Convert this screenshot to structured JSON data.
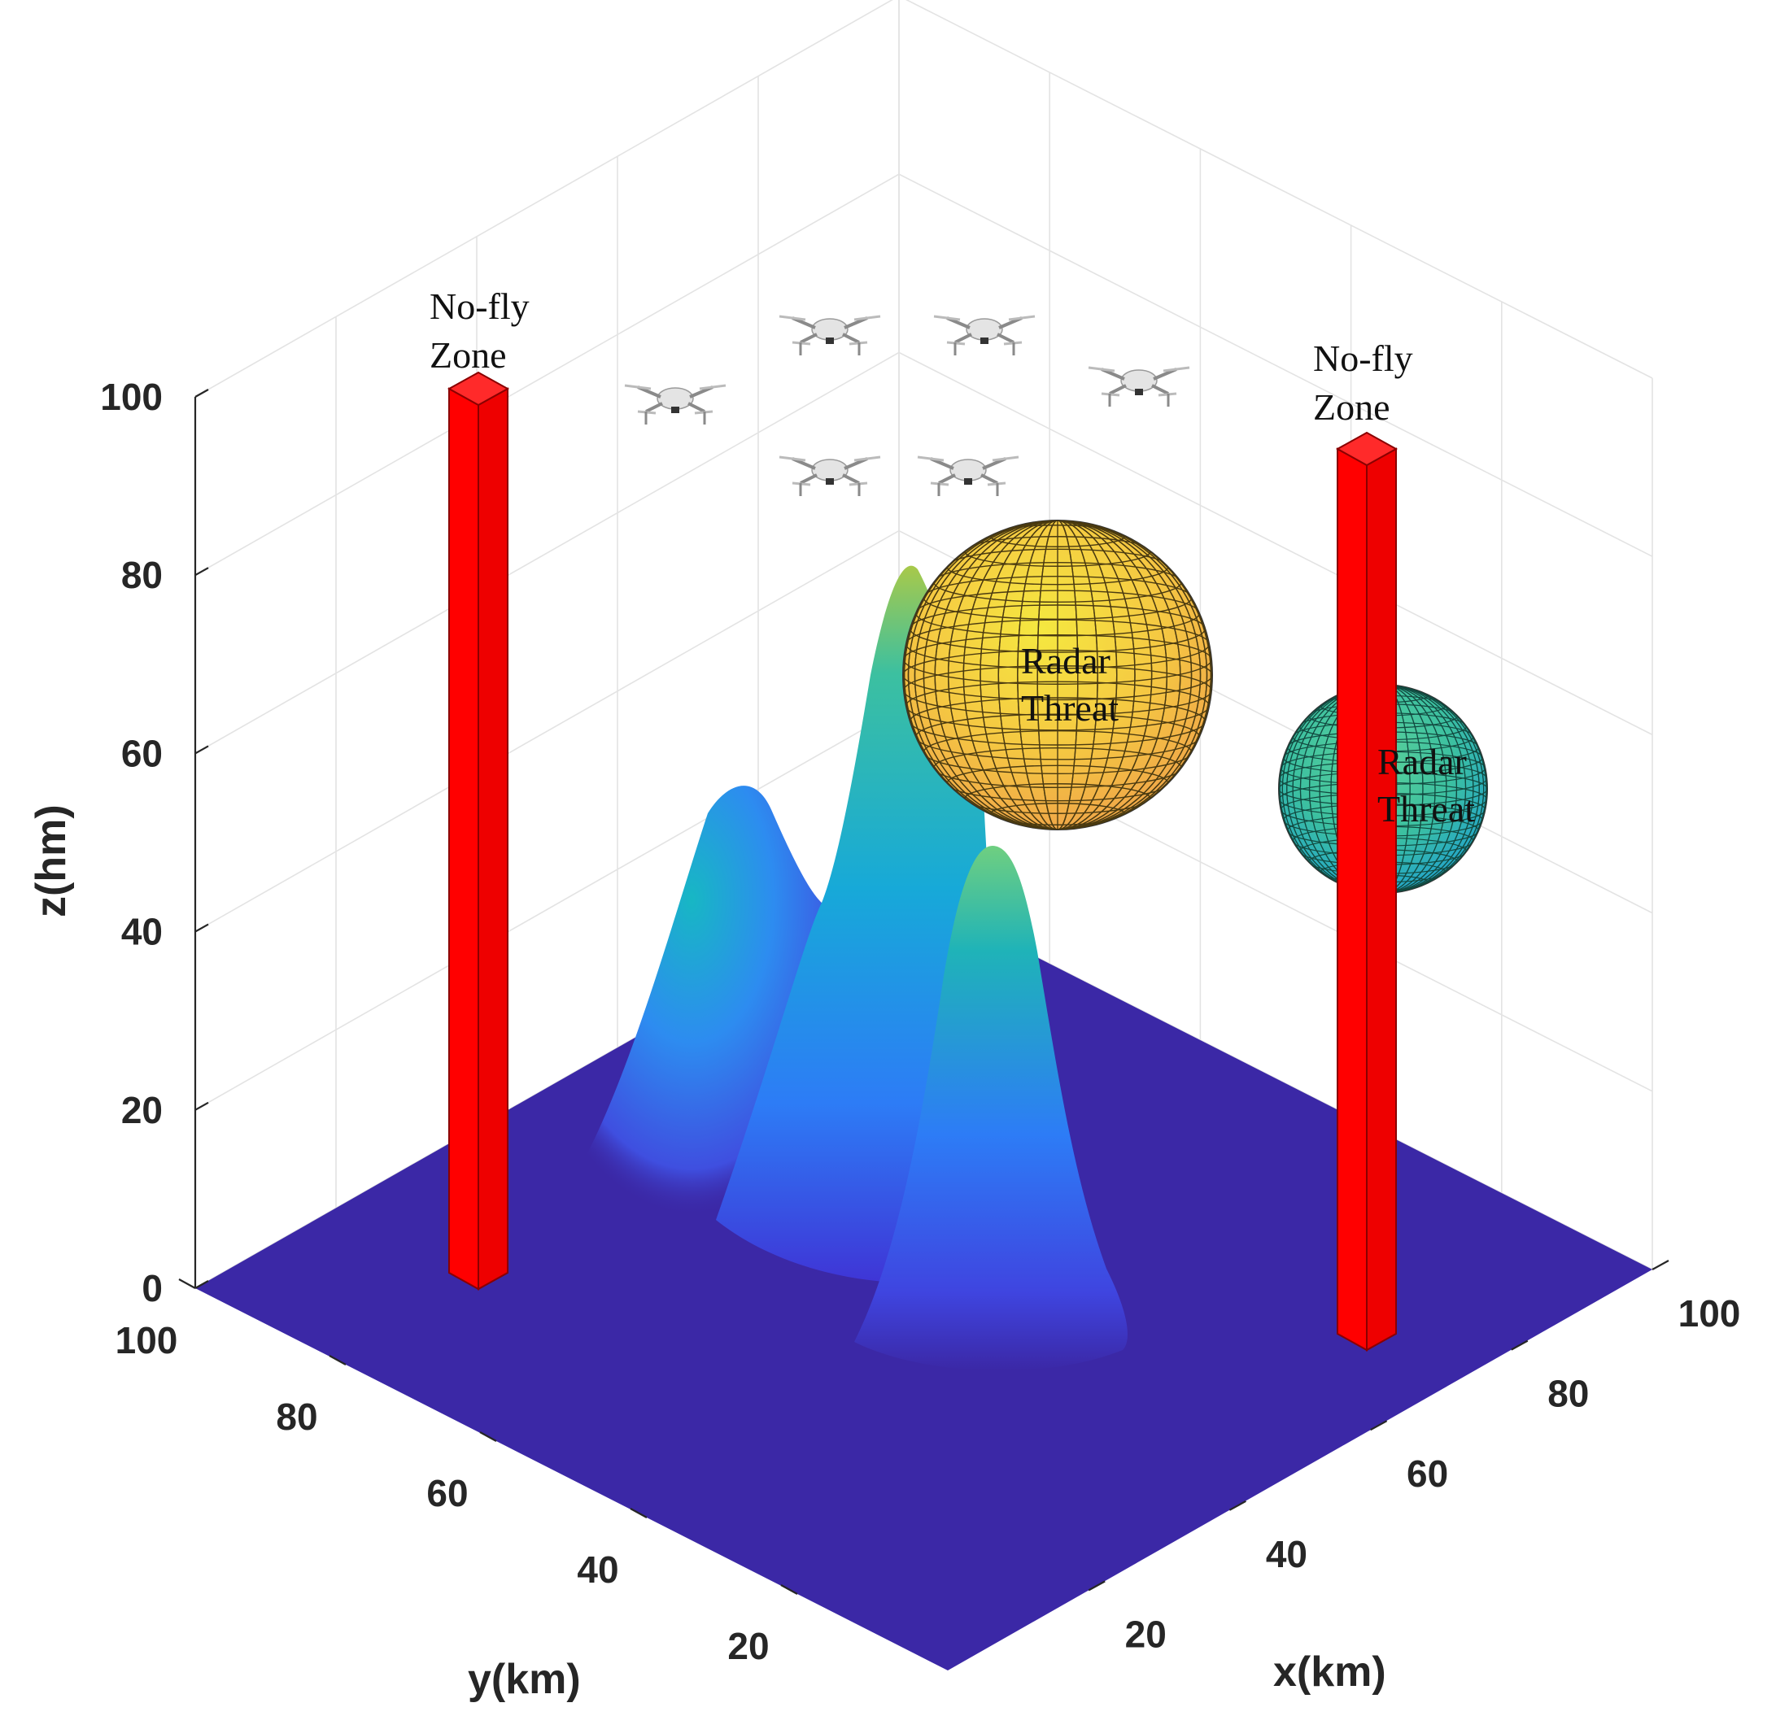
{
  "chart_data": {
    "type": "surface3d",
    "title": "",
    "xlabel": "x(km)",
    "ylabel": "y(km)",
    "zlabel": "z(hm)",
    "xlim": [
      0,
      100
    ],
    "ylim": [
      0,
      100
    ],
    "zlim": [
      0,
      100
    ],
    "x_ticks": [
      "20",
      "40",
      "60",
      "80",
      "100"
    ],
    "y_ticks": [
      "20",
      "40",
      "60",
      "80",
      "100"
    ],
    "z_ticks": [
      "0",
      "20",
      "40",
      "60",
      "80",
      "100"
    ],
    "grid": true,
    "terrain_peaks": [
      {
        "x": 25,
        "y": 55,
        "height": 56
      },
      {
        "x": 42,
        "y": 32,
        "height": 83
      },
      {
        "x": 20,
        "y": 30,
        "height": 50
      }
    ],
    "no_fly_zones": [
      {
        "label": "No-fly\nZone",
        "x": 5,
        "y": 70,
        "height": 100,
        "color": "#ff0000"
      },
      {
        "label": "No-fly\nZone",
        "x": 80,
        "y": 5,
        "height": 100,
        "color": "#ff0000"
      }
    ],
    "radar_threats": [
      {
        "label": "Radar\nThreat",
        "x": 60,
        "y": 40,
        "z": 70,
        "color": "#f5c842"
      },
      {
        "label": "Radar\nThreat",
        "x": 85,
        "y": 30,
        "z": 60,
        "color": "#3cc0a0"
      }
    ],
    "uavs": 6,
    "colors": {
      "ground": "#3b28a6",
      "low": "#3f35d6",
      "mid": "#2d7cf6",
      "high": "#17b7c4",
      "peak": "#a8c94a",
      "pillar": "#ff0000"
    }
  }
}
